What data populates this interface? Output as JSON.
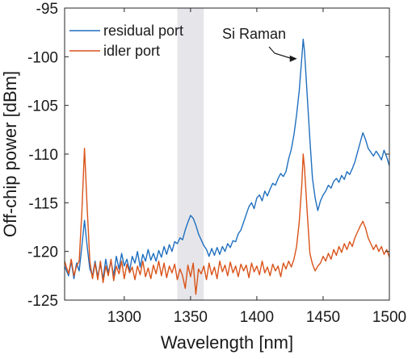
{
  "chart_data": {
    "type": "line",
    "xlabel": "Wavelength [nm]",
    "ylabel": "Off-chip power [dBm]",
    "xlim": [
      1255,
      1500
    ],
    "ylim": [
      -125,
      -95
    ],
    "xticks": [
      1300,
      1350,
      1400,
      1450,
      1500
    ],
    "yticks": [
      -95,
      -100,
      -105,
      -110,
      -115,
      -120,
      -125
    ],
    "grid": false,
    "legend_position": "top-left",
    "shaded_band": {
      "x": [
        1340,
        1360
      ],
      "color": "#e6e6ea"
    },
    "series": [
      {
        "name": "residual port",
        "color": "#1f6fbf",
        "points": [
          [
            1255,
            -121.5
          ],
          [
            1258,
            -122.5
          ],
          [
            1260,
            -121
          ],
          [
            1262,
            -122.8
          ],
          [
            1264,
            -121.2
          ],
          [
            1266,
            -122
          ],
          [
            1268,
            -119.5
          ],
          [
            1270,
            -116.8
          ],
          [
            1272,
            -119.5
          ],
          [
            1274,
            -121.8
          ],
          [
            1276,
            -122.5
          ],
          [
            1278,
            -121
          ],
          [
            1280,
            -122.6
          ],
          [
            1282,
            -121.3
          ],
          [
            1284,
            -122.8
          ],
          [
            1286,
            -120.8
          ],
          [
            1288,
            -122.2
          ],
          [
            1290,
            -121
          ],
          [
            1292,
            -122.5
          ],
          [
            1294,
            -120.5
          ],
          [
            1296,
            -121.8
          ],
          [
            1298,
            -120.2
          ],
          [
            1300,
            -121.5
          ],
          [
            1302,
            -120.8
          ],
          [
            1304,
            -122
          ],
          [
            1306,
            -120.5
          ],
          [
            1308,
            -121.2
          ],
          [
            1310,
            -120
          ],
          [
            1312,
            -121.6
          ],
          [
            1314,
            -120.3
          ],
          [
            1316,
            -121
          ],
          [
            1318,
            -119.8
          ],
          [
            1320,
            -120.9
          ],
          [
            1322,
            -120.2
          ],
          [
            1324,
            -121
          ],
          [
            1326,
            -119.9
          ],
          [
            1328,
            -120.6
          ],
          [
            1330,
            -119.5
          ],
          [
            1332,
            -120.3
          ],
          [
            1334,
            -119.3
          ],
          [
            1336,
            -120
          ],
          [
            1338,
            -119
          ],
          [
            1340,
            -119.2
          ],
          [
            1342,
            -118.6
          ],
          [
            1344,
            -118.8
          ],
          [
            1346,
            -117.8
          ],
          [
            1348,
            -117
          ],
          [
            1350,
            -116.3
          ],
          [
            1352,
            -116.6
          ],
          [
            1354,
            -117.3
          ],
          [
            1356,
            -118.2
          ],
          [
            1358,
            -118.8
          ],
          [
            1360,
            -119.4
          ],
          [
            1362,
            -119.8
          ],
          [
            1364,
            -120.5
          ],
          [
            1366,
            -119.7
          ],
          [
            1368,
            -120.4
          ],
          [
            1370,
            -119.6
          ],
          [
            1372,
            -120.3
          ],
          [
            1374,
            -119.5
          ],
          [
            1376,
            -120
          ],
          [
            1378,
            -119.2
          ],
          [
            1380,
            -119.6
          ],
          [
            1382,
            -118.9
          ],
          [
            1384,
            -119
          ],
          [
            1386,
            -118.2
          ],
          [
            1388,
            -117.8
          ],
          [
            1390,
            -117
          ],
          [
            1392,
            -116.2
          ],
          [
            1394,
            -115.4
          ],
          [
            1396,
            -115
          ],
          [
            1398,
            -115.6
          ],
          [
            1400,
            -114.5
          ],
          [
            1402,
            -114.2
          ],
          [
            1404,
            -114.8
          ],
          [
            1406,
            -113.8
          ],
          [
            1408,
            -114.3
          ],
          [
            1410,
            -113.6
          ],
          [
            1412,
            -113
          ],
          [
            1414,
            -113.2
          ],
          [
            1416,
            -112.5
          ],
          [
            1418,
            -112
          ],
          [
            1420,
            -112.3
          ],
          [
            1422,
            -111.8
          ],
          [
            1424,
            -110.5
          ],
          [
            1426,
            -109.5
          ],
          [
            1428,
            -108
          ],
          [
            1430,
            -106
          ],
          [
            1432,
            -103.5
          ],
          [
            1434,
            -100
          ],
          [
            1435,
            -98.2
          ],
          [
            1436,
            -99.5
          ],
          [
            1438,
            -104
          ],
          [
            1440,
            -108.5
          ],
          [
            1442,
            -112.5
          ],
          [
            1444,
            -114.5
          ],
          [
            1446,
            -115.8
          ],
          [
            1448,
            -114.8
          ],
          [
            1450,
            -114.2
          ],
          [
            1452,
            -113.8
          ],
          [
            1454,
            -113.2
          ],
          [
            1456,
            -113.5
          ],
          [
            1458,
            -112.8
          ],
          [
            1460,
            -112.5
          ],
          [
            1462,
            -112.9
          ],
          [
            1464,
            -112.2
          ],
          [
            1466,
            -112.6
          ],
          [
            1468,
            -111.8
          ],
          [
            1470,
            -112.1
          ],
          [
            1472,
            -111.5
          ],
          [
            1474,
            -110.8
          ],
          [
            1476,
            -109.8
          ],
          [
            1478,
            -108.8
          ],
          [
            1480,
            -107.8
          ],
          [
            1482,
            -108.5
          ],
          [
            1484,
            -109.4
          ],
          [
            1486,
            -109.8
          ],
          [
            1488,
            -110.2
          ],
          [
            1490,
            -109.7
          ],
          [
            1492,
            -110.1
          ],
          [
            1494,
            -110.6
          ],
          [
            1496,
            -109.6
          ],
          [
            1498,
            -110.3
          ],
          [
            1500,
            -111.2
          ]
        ]
      },
      {
        "name": "idler port",
        "color": "#d95319",
        "points": [
          [
            1255,
            -121
          ],
          [
            1258,
            -122.3
          ],
          [
            1260,
            -120.8
          ],
          [
            1262,
            -122.5
          ],
          [
            1264,
            -121.5
          ],
          [
            1266,
            -121
          ],
          [
            1268,
            -116
          ],
          [
            1270,
            -109.4
          ],
          [
            1272,
            -115.5
          ],
          [
            1274,
            -121
          ],
          [
            1276,
            -122.8
          ],
          [
            1278,
            -121.2
          ],
          [
            1280,
            -122.9
          ],
          [
            1282,
            -121
          ],
          [
            1284,
            -123.2
          ],
          [
            1286,
            -121.5
          ],
          [
            1288,
            -122.5
          ],
          [
            1290,
            -120.8
          ],
          [
            1292,
            -123
          ],
          [
            1294,
            -121.5
          ],
          [
            1296,
            -122.3
          ],
          [
            1298,
            -121
          ],
          [
            1300,
            -122.8
          ],
          [
            1302,
            -121.3
          ],
          [
            1304,
            -122.2
          ],
          [
            1306,
            -121.6
          ],
          [
            1308,
            -122.9
          ],
          [
            1310,
            -121.5
          ],
          [
            1312,
            -122.4
          ],
          [
            1314,
            -121
          ],
          [
            1316,
            -122.6
          ],
          [
            1318,
            -121.7
          ],
          [
            1320,
            -122.8
          ],
          [
            1322,
            -121.4
          ],
          [
            1324,
            -122.3
          ],
          [
            1326,
            -121
          ],
          [
            1328,
            -122.5
          ],
          [
            1330,
            -121.2
          ],
          [
            1332,
            -122.7
          ],
          [
            1334,
            -121.5
          ],
          [
            1336,
            -122.2
          ],
          [
            1338,
            -121.3
          ],
          [
            1340,
            -122.9
          ],
          [
            1342,
            -121.8
          ],
          [
            1344,
            -122.5
          ],
          [
            1346,
            -123.8
          ],
          [
            1348,
            -121.4
          ],
          [
            1350,
            -122.6
          ],
          [
            1352,
            -121.2
          ],
          [
            1354,
            -124.4
          ],
          [
            1356,
            -121.8
          ],
          [
            1358,
            -122.3
          ],
          [
            1360,
            -121.5
          ],
          [
            1362,
            -122.9
          ],
          [
            1364,
            -121.2
          ],
          [
            1366,
            -122.4
          ],
          [
            1368,
            -121.6
          ],
          [
            1370,
            -122.8
          ],
          [
            1372,
            -121
          ],
          [
            1374,
            -122.1
          ],
          [
            1376,
            -121.4
          ],
          [
            1378,
            -122.5
          ],
          [
            1380,
            -121.1
          ],
          [
            1382,
            -122.2
          ],
          [
            1384,
            -121.5
          ],
          [
            1386,
            -122.6
          ],
          [
            1388,
            -121.3
          ],
          [
            1390,
            -122
          ],
          [
            1392,
            -121.4
          ],
          [
            1394,
            -122.7
          ],
          [
            1396,
            -121.2
          ],
          [
            1398,
            -122.1
          ],
          [
            1400,
            -121.5
          ],
          [
            1402,
            -122.4
          ],
          [
            1404,
            -121
          ],
          [
            1406,
            -122.2
          ],
          [
            1408,
            -121.6
          ],
          [
            1410,
            -122.5
          ],
          [
            1412,
            -121.3
          ],
          [
            1414,
            -122
          ],
          [
            1416,
            -121.5
          ],
          [
            1418,
            -122.6
          ],
          [
            1420,
            -121.2
          ],
          [
            1422,
            -121.8
          ],
          [
            1424,
            -121
          ],
          [
            1426,
            -121.6
          ],
          [
            1428,
            -120.8
          ],
          [
            1430,
            -119.5
          ],
          [
            1432,
            -117
          ],
          [
            1434,
            -113
          ],
          [
            1435,
            -110
          ],
          [
            1436,
            -111.5
          ],
          [
            1438,
            -116
          ],
          [
            1440,
            -120.2
          ],
          [
            1442,
            -121.3
          ],
          [
            1444,
            -122
          ],
          [
            1446,
            -121.5
          ],
          [
            1448,
            -121.2
          ],
          [
            1450,
            -120.5
          ],
          [
            1452,
            -121
          ],
          [
            1454,
            -120.2
          ],
          [
            1456,
            -120.8
          ],
          [
            1458,
            -119.8
          ],
          [
            1460,
            -120.4
          ],
          [
            1462,
            -119.5
          ],
          [
            1464,
            -120.1
          ],
          [
            1466,
            -119.2
          ],
          [
            1468,
            -119.8
          ],
          [
            1470,
            -119
          ],
          [
            1472,
            -119.5
          ],
          [
            1474,
            -118.6
          ],
          [
            1476,
            -118
          ],
          [
            1478,
            -117.4
          ],
          [
            1480,
            -116.9
          ],
          [
            1482,
            -117.6
          ],
          [
            1484,
            -118.6
          ],
          [
            1486,
            -119.2
          ],
          [
            1488,
            -119.8
          ],
          [
            1490,
            -119.3
          ],
          [
            1492,
            -120
          ],
          [
            1494,
            -119.5
          ],
          [
            1496,
            -120.3
          ],
          [
            1498,
            -119.8
          ],
          [
            1500,
            -120.6
          ]
        ]
      }
    ],
    "annotation": {
      "text": "Si Raman",
      "points_to": [
        1434,
        -98.5
      ]
    }
  }
}
